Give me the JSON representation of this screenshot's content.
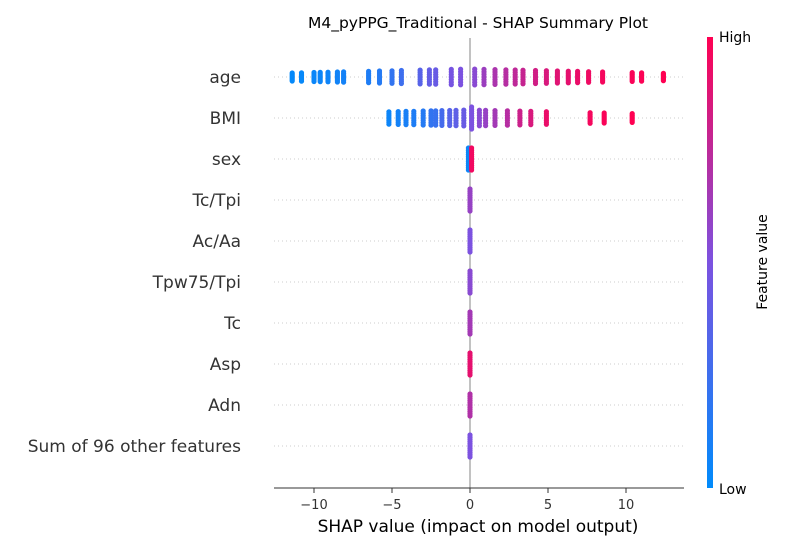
{
  "chart_data": {
    "type": "scatter",
    "subtype": "shap-beeswarm",
    "title": "M4_pyPPG_Traditional - SHAP Summary Plot",
    "xlabel": "SHAP value (impact on model output)",
    "xlim": [
      -12.5,
      13.5
    ],
    "xticks": [
      -10,
      -5,
      0,
      5,
      10
    ],
    "colorbar": {
      "label": "Feature value",
      "high_label": "High",
      "low_label": "Low",
      "low_color": "#008bfb",
      "mid_color": "#7c52e0",
      "high_color": "#ff0052"
    },
    "features": [
      {
        "name": "age",
        "points": [
          {
            "x": -11.4,
            "c": 0.02
          },
          {
            "x": -10.8,
            "c": 0.03
          },
          {
            "x": -10.0,
            "c": 0.04
          },
          {
            "x": -9.6,
            "c": 0.05
          },
          {
            "x": -9.1,
            "c": 0.06
          },
          {
            "x": -8.5,
            "c": 0.07
          },
          {
            "x": -8.1,
            "c": 0.08
          },
          {
            "x": -6.5,
            "c": 0.12
          },
          {
            "x": -5.8,
            "c": 0.15
          },
          {
            "x": -5.0,
            "c": 0.2
          },
          {
            "x": -4.4,
            "c": 0.25
          },
          {
            "x": -3.2,
            "c": 0.35
          },
          {
            "x": -2.6,
            "c": 0.4
          },
          {
            "x": -2.2,
            "c": 0.42
          },
          {
            "x": -1.2,
            "c": 0.48
          },
          {
            "x": -0.6,
            "c": 0.5
          },
          {
            "x": 0.3,
            "c": 0.55
          },
          {
            "x": 0.9,
            "c": 0.62
          },
          {
            "x": 1.6,
            "c": 0.68
          },
          {
            "x": 2.3,
            "c": 0.72
          },
          {
            "x": 2.9,
            "c": 0.75
          },
          {
            "x": 3.4,
            "c": 0.78
          },
          {
            "x": 4.2,
            "c": 0.82
          },
          {
            "x": 4.9,
            "c": 0.85
          },
          {
            "x": 5.6,
            "c": 0.88
          },
          {
            "x": 6.3,
            "c": 0.9
          },
          {
            "x": 6.9,
            "c": 0.92
          },
          {
            "x": 7.6,
            "c": 0.94
          },
          {
            "x": 8.5,
            "c": 0.96
          },
          {
            "x": 10.4,
            "c": 0.98
          },
          {
            "x": 11.0,
            "c": 0.99
          },
          {
            "x": 12.4,
            "c": 1.0
          }
        ]
      },
      {
        "name": "BMI",
        "points": [
          {
            "x": -5.2,
            "c": 0.05
          },
          {
            "x": -4.6,
            "c": 0.08
          },
          {
            "x": -4.1,
            "c": 0.1
          },
          {
            "x": -3.6,
            "c": 0.12
          },
          {
            "x": -3.0,
            "c": 0.15
          },
          {
            "x": -2.5,
            "c": 0.2
          },
          {
            "x": -2.2,
            "c": 0.22
          },
          {
            "x": -1.8,
            "c": 0.28
          },
          {
            "x": -1.3,
            "c": 0.35
          },
          {
            "x": -0.9,
            "c": 0.38
          },
          {
            "x": -0.4,
            "c": 0.42
          },
          {
            "x": 0.1,
            "c": 0.5
          },
          {
            "x": 0.6,
            "c": 0.55
          },
          {
            "x": 1.0,
            "c": 0.6
          },
          {
            "x": 1.6,
            "c": 0.65
          },
          {
            "x": 2.4,
            "c": 0.72
          },
          {
            "x": 3.2,
            "c": 0.8
          },
          {
            "x": 3.9,
            "c": 0.85
          },
          {
            "x": 4.9,
            "c": 0.92
          },
          {
            "x": 7.7,
            "c": 0.96
          },
          {
            "x": 8.6,
            "c": 0.98
          },
          {
            "x": 10.4,
            "c": 1.0
          }
        ]
      },
      {
        "name": "sex",
        "points": [
          {
            "x": -0.1,
            "c": 0.05
          },
          {
            "x": 0.1,
            "c": 0.95
          }
        ]
      },
      {
        "name": "Tc/Tpi",
        "points": [
          {
            "x": 0.0,
            "c": 0.6
          }
        ]
      },
      {
        "name": "Ac/Aa",
        "points": [
          {
            "x": 0.0,
            "c": 0.5
          }
        ]
      },
      {
        "name": "Tpw75/Tpi",
        "points": [
          {
            "x": 0.0,
            "c": 0.55
          }
        ]
      },
      {
        "name": "Tc",
        "points": [
          {
            "x": 0.0,
            "c": 0.65
          }
        ]
      },
      {
        "name": "Asp",
        "points": [
          {
            "x": 0.0,
            "c": 0.9
          }
        ]
      },
      {
        "name": "Adn",
        "points": [
          {
            "x": 0.0,
            "c": 0.7
          }
        ]
      },
      {
        "name": "Sum of 96 other features",
        "points": [
          {
            "x": 0.0,
            "c": 0.5
          }
        ]
      }
    ]
  }
}
